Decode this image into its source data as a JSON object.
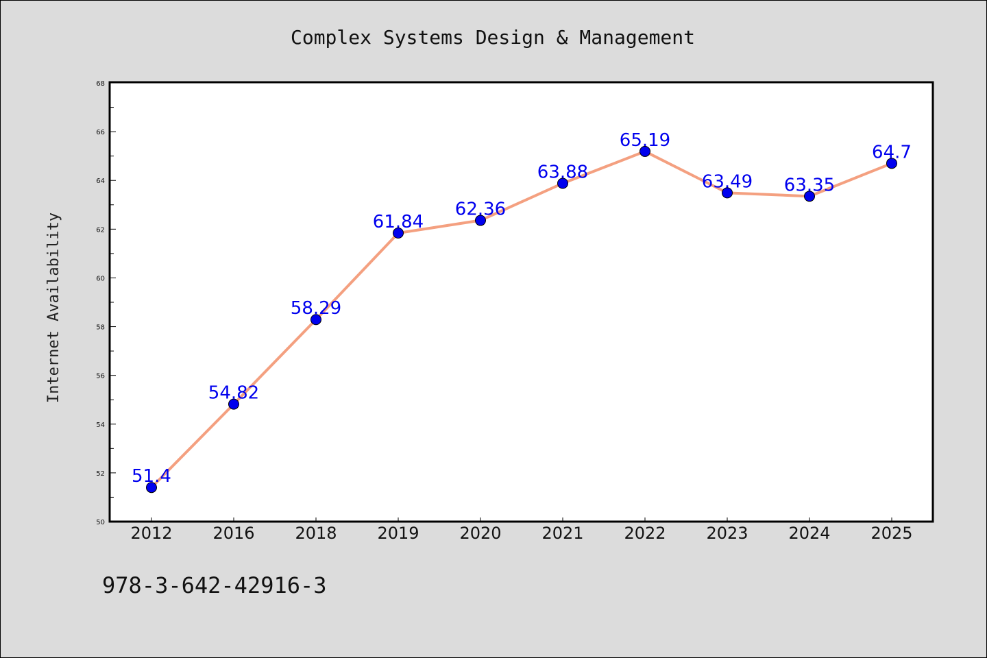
{
  "chart_data": {
    "type": "line",
    "title": "Complex Systems Design & Management",
    "xlabel": "",
    "ylabel": "Internet Availability",
    "categories": [
      "2012",
      "2016",
      "2018",
      "2019",
      "2020",
      "2021",
      "2022",
      "2023",
      "2024",
      "2025"
    ],
    "series": [
      {
        "values": [
          51.4,
          54.82,
          58.29,
          61.84,
          62.36,
          63.88,
          65.19,
          63.49,
          63.35,
          64.7
        ],
        "data_labels": [
          "51.4",
          "54.82",
          "58.29",
          "61.84",
          "62.36",
          "63.88",
          "65.19",
          "63.49",
          "63.35",
          "64.7"
        ],
        "line_color": "#f4a080",
        "marker_color": "#0000ee"
      }
    ],
    "ylim": [
      50,
      68
    ],
    "y_ticks": [
      "50",
      "52",
      "54",
      "56",
      "58",
      "60",
      "62",
      "64",
      "66",
      "68"
    ],
    "grid": false,
    "legend": "none",
    "label_color": "#0000ee"
  },
  "footer": {
    "isbn": "978-3-642-42916-3"
  },
  "colors": {
    "background": "#dcdcdc",
    "plot_background": "#ffffff"
  }
}
